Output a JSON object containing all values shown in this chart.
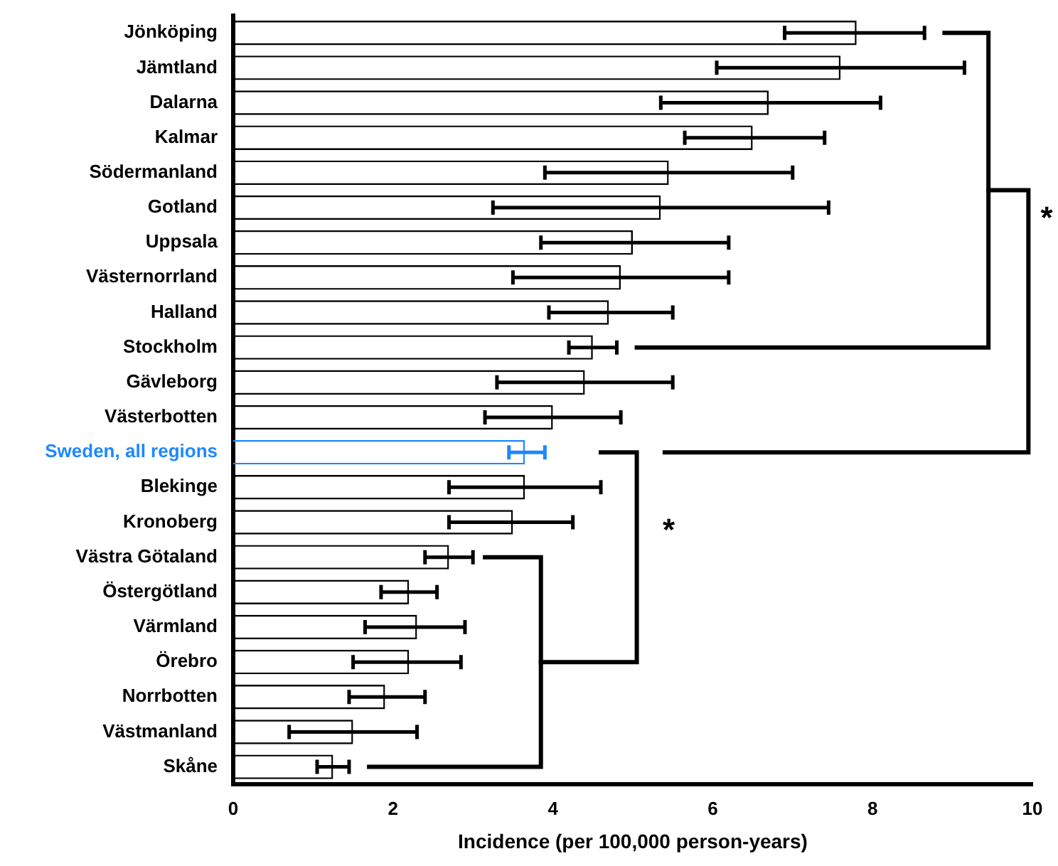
{
  "chart_data": {
    "type": "bar",
    "orientation": "horizontal",
    "xlabel": "Incidence (per 100,000 person-years)",
    "categories": [
      "Jönköping",
      "Jämtland",
      "Dalarna",
      "Kalmar",
      "Södermanland",
      "Gotland",
      "Uppsala",
      "Västernorrland",
      "Halland",
      "Stockholm",
      "Gävleborg",
      "Västerbotten",
      "Sweden, all regions",
      "Blekinge",
      "Kronoberg",
      "Västra Götaland",
      "Östergötland",
      "Värmland",
      "Örebro",
      "Norrbotten",
      "Västmanland",
      "Skåne"
    ],
    "values": [
      7.8,
      7.6,
      6.7,
      6.5,
      5.45,
      5.35,
      5.0,
      4.85,
      4.7,
      4.5,
      4.4,
      4.0,
      3.65,
      3.65,
      3.5,
      2.7,
      2.2,
      2.3,
      2.2,
      1.9,
      1.5,
      1.25
    ],
    "errors": [
      [
        6.9,
        8.65
      ],
      [
        6.05,
        9.15
      ],
      [
        5.35,
        8.1
      ],
      [
        5.65,
        7.4
      ],
      [
        3.9,
        7.0
      ],
      [
        3.25,
        7.45
      ],
      [
        3.85,
        6.2
      ],
      [
        3.5,
        6.2
      ],
      [
        3.95,
        5.5
      ],
      [
        4.2,
        4.8
      ],
      [
        3.3,
        5.5
      ],
      [
        3.15,
        4.85
      ],
      [
        3.45,
        3.9
      ],
      [
        2.7,
        4.6
      ],
      [
        2.7,
        4.25
      ],
      [
        2.4,
        3.0
      ],
      [
        1.85,
        2.55
      ],
      [
        1.65,
        2.9
      ],
      [
        1.5,
        2.85
      ],
      [
        1.45,
        2.4
      ],
      [
        0.7,
        2.3
      ],
      [
        1.05,
        1.45
      ]
    ],
    "colors": [
      "#000000",
      "#000000",
      "#000000",
      "#000000",
      "#000000",
      "#000000",
      "#000000",
      "#000000",
      "#000000",
      "#000000",
      "#000000",
      "#000000",
      "#1e88ff",
      "#000000",
      "#000000",
      "#000000",
      "#000000",
      "#000000",
      "#000000",
      "#000000",
      "#000000",
      "#000000"
    ],
    "xlim": [
      0,
      10
    ],
    "xticks": [
      0,
      2,
      4,
      6,
      8,
      10
    ],
    "grid": false,
    "legend": false,
    "annotations": [
      "*",
      "*"
    ]
  }
}
